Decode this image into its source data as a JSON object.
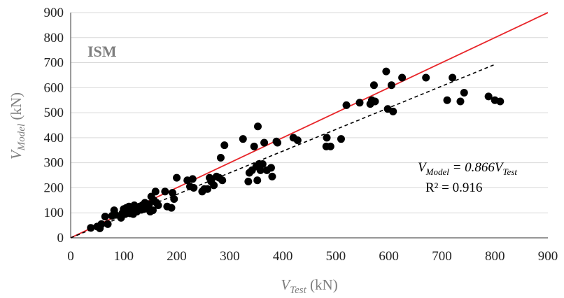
{
  "chart_data": {
    "type": "scatter",
    "title": "",
    "inset_label": "ISM",
    "xlabel": {
      "main": "V",
      "sub": "Test",
      "unit": " (kN)"
    },
    "ylabel": {
      "main": "V",
      "sub": "Model",
      "unit": " (kN)"
    },
    "xlim": [
      0,
      900
    ],
    "ylim": [
      0,
      900
    ],
    "xticks": [
      0,
      100,
      200,
      300,
      400,
      500,
      600,
      700,
      800,
      900
    ],
    "yticks": [
      0,
      100,
      200,
      300,
      400,
      500,
      600,
      700,
      800,
      900
    ],
    "grid": "horizontal",
    "colors": {
      "points": "#000000",
      "equality_line": "#e8262a",
      "trend_line": "#000000",
      "grid": "#d9d9d9"
    },
    "equality_line": {
      "x": [
        0,
        900
      ],
      "y": [
        0,
        900
      ]
    },
    "trend_line": {
      "slope": 0.866,
      "x": [
        0,
        800
      ]
    },
    "equation": {
      "lhs_main": "V",
      "lhs_sub": "Model",
      "eq": " = 0.866",
      "rhs_main": "V",
      "rhs_sub": "Test",
      "r2": "R² = 0.916"
    },
    "points": [
      [
        38,
        40
      ],
      [
        50,
        45
      ],
      [
        55,
        38
      ],
      [
        58,
        55
      ],
      [
        65,
        85
      ],
      [
        70,
        55
      ],
      [
        78,
        88
      ],
      [
        82,
        110
      ],
      [
        85,
        92
      ],
      [
        95,
        80
      ],
      [
        98,
        100
      ],
      [
        100,
        115
      ],
      [
        103,
        95
      ],
      [
        105,
        120
      ],
      [
        108,
        108
      ],
      [
        110,
        125
      ],
      [
        112,
        98
      ],
      [
        115,
        112
      ],
      [
        118,
        95
      ],
      [
        120,
        130
      ],
      [
        122,
        118
      ],
      [
        125,
        105
      ],
      [
        128,
        120
      ],
      [
        130,
        125
      ],
      [
        133,
        112
      ],
      [
        135,
        130
      ],
      [
        138,
        115
      ],
      [
        140,
        140
      ],
      [
        142,
        118
      ],
      [
        145,
        125
      ],
      [
        148,
        135
      ],
      [
        150,
        105
      ],
      [
        152,
        165
      ],
      [
        155,
        110
      ],
      [
        157,
        150
      ],
      [
        160,
        185
      ],
      [
        162,
        140
      ],
      [
        165,
        130
      ],
      [
        178,
        185
      ],
      [
        182,
        125
      ],
      [
        190,
        120
      ],
      [
        192,
        180
      ],
      [
        195,
        155
      ],
      [
        200,
        240
      ],
      [
        220,
        230
      ],
      [
        225,
        205
      ],
      [
        230,
        235
      ],
      [
        232,
        200
      ],
      [
        248,
        185
      ],
      [
        252,
        195
      ],
      [
        258,
        195
      ],
      [
        262,
        240
      ],
      [
        265,
        225
      ],
      [
        270,
        210
      ],
      [
        275,
        245
      ],
      [
        280,
        240
      ],
      [
        283,
        320
      ],
      [
        286,
        230
      ],
      [
        290,
        370
      ],
      [
        325,
        395
      ],
      [
        335,
        225
      ],
      [
        337,
        260
      ],
      [
        342,
        270
      ],
      [
        346,
        365
      ],
      [
        350,
        285
      ],
      [
        352,
        230
      ],
      [
        353,
        445
      ],
      [
        355,
        295
      ],
      [
        358,
        270
      ],
      [
        362,
        295
      ],
      [
        365,
        380
      ],
      [
        370,
        270
      ],
      [
        378,
        280
      ],
      [
        380,
        245
      ],
      [
        388,
        385
      ],
      [
        390,
        380
      ],
      [
        420,
        400
      ],
      [
        428,
        390
      ],
      [
        482,
        365
      ],
      [
        483,
        400
      ],
      [
        490,
        365
      ],
      [
        510,
        395
      ],
      [
        520,
        530
      ],
      [
        545,
        540
      ],
      [
        565,
        535
      ],
      [
        568,
        550
      ],
      [
        572,
        610
      ],
      [
        574,
        545
      ],
      [
        595,
        665
      ],
      [
        598,
        515
      ],
      [
        605,
        610
      ],
      [
        608,
        505
      ],
      [
        625,
        640
      ],
      [
        670,
        640
      ],
      [
        710,
        550
      ],
      [
        720,
        640
      ],
      [
        735,
        545
      ],
      [
        742,
        580
      ],
      [
        788,
        565
      ],
      [
        800,
        550
      ],
      [
        810,
        545
      ]
    ]
  }
}
